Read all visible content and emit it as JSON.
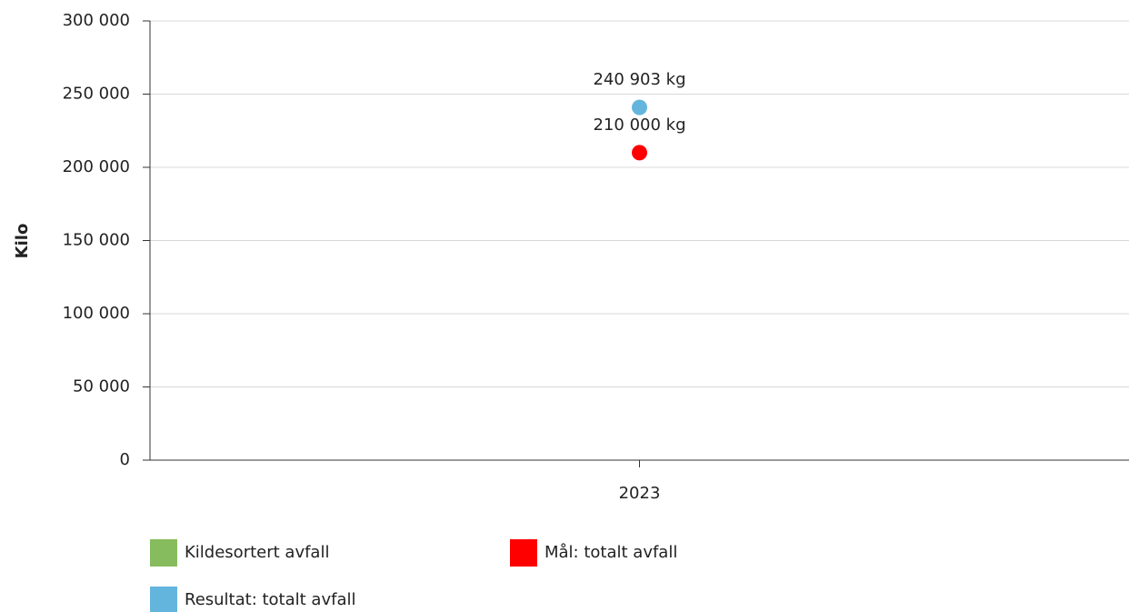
{
  "chart_data": {
    "type": "scatter",
    "categories": [
      "2023"
    ],
    "y_label": "Kilo",
    "ylim": [
      0,
      300000
    ],
    "yticks": [
      0,
      {
        "value": 50000,
        "label": "50 000"
      },
      {
        "value": 100000,
        "label": "100 000"
      },
      {
        "value": 150000,
        "label": "150 000"
      },
      {
        "value": 200000,
        "label": "200 000"
      },
      {
        "value": 250000,
        "label": "250 000"
      },
      {
        "value": 300000,
        "label": "300 000"
      }
    ],
    "grid": true,
    "series": [
      {
        "name": "Kildesortert avfall",
        "color": "#86bc5e",
        "values": [
          null
        ]
      },
      {
        "name": "Mål: totalt avfall",
        "color": "#ff0000",
        "values": [
          210000
        ],
        "value_labels": [
          "210 000 kg"
        ]
      },
      {
        "name": "Resultat: totalt avfall",
        "color": "#64b5de",
        "values": [
          240903
        ],
        "value_labels": [
          "240 903 kg"
        ]
      }
    ]
  }
}
